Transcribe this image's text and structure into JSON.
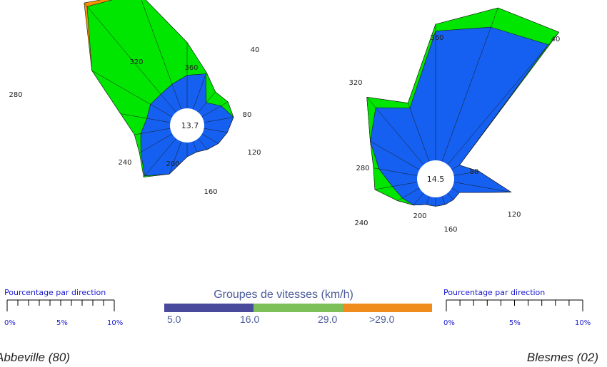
{
  "chart_data": {
    "type": "wind-rose",
    "legend": {
      "title": "Groupes de vitesses (km/h)",
      "classes": [
        {
          "label": "5.0",
          "color": "#4a4a9c"
        },
        {
          "label": "16.0",
          "color": "#7dc05a"
        },
        {
          "label": "29.0",
          "color": "#f08c1e"
        },
        {
          "label": ">29.0",
          "color": ""
        }
      ]
    },
    "scale": {
      "title": "Pourcentage par direction",
      "ticks": [
        "0%",
        "5%",
        "10%"
      ]
    },
    "layer_colors": [
      "#1560f0",
      "#00e600",
      "#f39200"
    ],
    "roses": [
      {
        "station": "Abbeville (80)",
        "calm_pct": "13.7",
        "direction_labels": [
          "40",
          "80",
          "120",
          "160",
          "200",
          "240",
          "280",
          "320",
          "360"
        ],
        "layers": [
          [
            1.9,
            2.5,
            3.0,
            2.6,
            2.3,
            2.0,
            1.8,
            2.0,
            3.3,
            4.2,
            3.4,
            3.0,
            2.6,
            2.7,
            2.6,
            2.8,
            3.2,
            3.5
          ],
          [
            2.8,
            3.0,
            3.0,
            2.6,
            2.3,
            2.0,
            1.8,
            2.0,
            3.3,
            4.3,
            3.5,
            3.4,
            4.3,
            7.0,
            9.9,
            9.0,
            5.3,
            3.6
          ],
          [
            2.8,
            3.0,
            3.0,
            2.6,
            2.3,
            2.0,
            1.8,
            2.0,
            3.3,
            4.3,
            3.5,
            3.4,
            4.3,
            7.0,
            10.2,
            9.0,
            5.3,
            3.6
          ]
        ]
      },
      {
        "station": "Blesmes (02)",
        "calm_pct": "14.5",
        "direction_labels": [
          "40",
          "80",
          "120",
          "160",
          "200",
          "240",
          "280",
          "320",
          "360"
        ],
        "layers": [
          [
            12.8,
            2.0,
            3.2,
            5.6,
            2.0,
            2.0,
            2.0,
            2.0,
            2.0,
            2.5,
            2.8,
            3.2,
            4.2,
            5.5,
            6.8,
            5.5,
            10.8,
            11.8
          ],
          [
            14.0,
            2.0,
            3.2,
            5.6,
            2.0,
            2.0,
            2.0,
            2.0,
            2.0,
            2.5,
            3.2,
            4.5,
            4.6,
            5.5,
            7.8,
            5.9,
            11.3,
            13.3
          ],
          [
            14.0,
            2.0,
            3.2,
            5.6,
            2.0,
            2.0,
            2.0,
            2.0,
            2.0,
            2.5,
            3.2,
            4.5,
            4.6,
            5.5,
            7.8,
            5.9,
            11.3,
            13.3
          ]
        ]
      }
    ]
  }
}
